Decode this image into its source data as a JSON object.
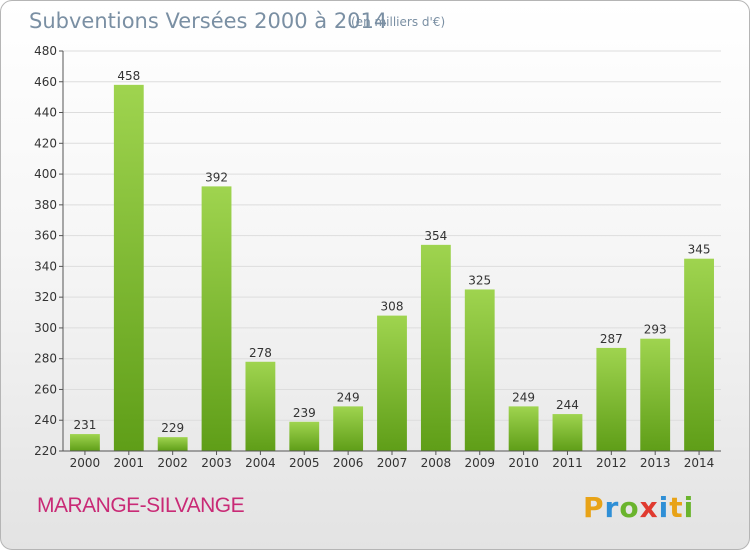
{
  "header": {
    "title": "Subventions Versées 2000 à 2014",
    "subtitle": "(en milliers d'€)"
  },
  "footer": {
    "commune": "MARANGE-SILVANGE",
    "logo_letters": [
      "P",
      "r",
      "o",
      "x",
      "i",
      "t",
      "i"
    ],
    "logo_colors": [
      "#e8a317",
      "#2f8fd6",
      "#6ab42d",
      "#e03a2f",
      "#2f8fd6",
      "#e8a317",
      "#6ab42d"
    ]
  },
  "colors": {
    "bar_light": "#9fd44f",
    "bar_dark": "#5f9e18",
    "grid": "#dddddd",
    "title": "#7a8fa3",
    "commune": "#c92a76"
  },
  "chart_data": {
    "type": "bar",
    "categories": [
      "2000",
      "2001",
      "2002",
      "2003",
      "2004",
      "2005",
      "2006",
      "2007",
      "2008",
      "2009",
      "2010",
      "2011",
      "2012",
      "2013",
      "2014"
    ],
    "values": [
      231,
      458,
      229,
      392,
      278,
      239,
      249,
      308,
      354,
      325,
      249,
      244,
      287,
      293,
      345
    ],
    "ylim": [
      220,
      480
    ],
    "yticks": [
      220,
      240,
      260,
      280,
      300,
      320,
      340,
      360,
      380,
      400,
      420,
      440,
      460,
      480
    ],
    "grid": true,
    "xlabel": "",
    "ylabel": ""
  }
}
